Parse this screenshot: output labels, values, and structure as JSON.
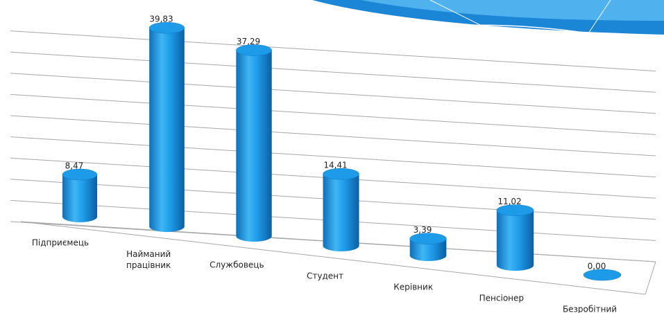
{
  "chart_data": {
    "type": "bar",
    "categories": [
      "Підприємець",
      "Найманий працівник",
      "Службовець",
      "Студент",
      "Керівник",
      "Пенсіонер",
      "Безробітний"
    ],
    "values": [
      8.47,
      39.83,
      37.29,
      14.41,
      3.39,
      11.02,
      0.0
    ],
    "value_labels": [
      "8,47",
      "39,83",
      "37,29",
      "14,41",
      "3,39",
      "11,02",
      "0,00"
    ],
    "color": "#1e9be8",
    "ylim": [
      0,
      45
    ],
    "yticks": [
      0,
      5,
      10,
      15,
      20,
      25,
      30,
      35,
      40,
      45
    ],
    "grid": true
  }
}
